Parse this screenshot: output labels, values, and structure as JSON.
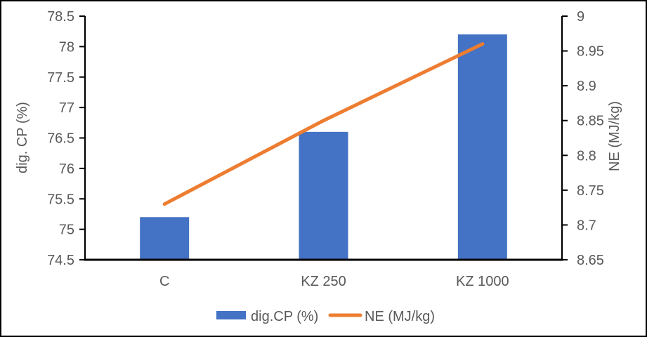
{
  "chart_data": {
    "type": "combo-bar-line",
    "categories": [
      "C",
      "KZ 250",
      "KZ 1000"
    ],
    "series": [
      {
        "name": "dig.CP (%)",
        "kind": "bar",
        "axis": "left",
        "values": [
          75.2,
          76.6,
          78.2
        ],
        "color": "#4472C4"
      },
      {
        "name": "NE (MJ/kg)",
        "kind": "line",
        "axis": "right",
        "values": [
          8.73,
          8.85,
          8.96
        ],
        "color": "#ED7D31"
      }
    ],
    "left_axis": {
      "title": "dig. CP (%)",
      "min": 74.5,
      "max": 78.5,
      "step": 0.5
    },
    "right_axis": {
      "title": "NE (MJ/kg)",
      "min": 8.65,
      "max": 9,
      "step": 0.05
    },
    "grid": false,
    "legend_position": "bottom",
    "colors": {
      "bar": "#4472C4",
      "line": "#ED7D31",
      "text": "#595959",
      "axis": "#000000",
      "background": "#FFFFFF"
    }
  }
}
